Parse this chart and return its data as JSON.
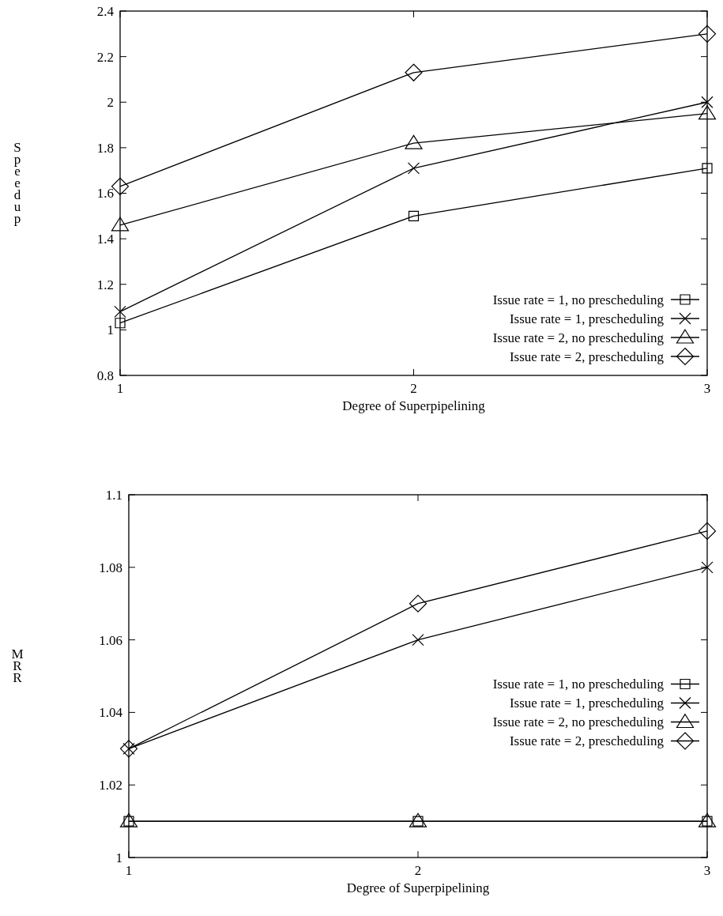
{
  "chart_data": [
    {
      "type": "line",
      "xlabel": "Degree of Superpipelining",
      "ylabel": "Speedup",
      "x": [
        1,
        2,
        3
      ],
      "xlim": [
        1,
        3
      ],
      "xticks": [
        1,
        2,
        3
      ],
      "ylim": [
        0.8,
        2.4
      ],
      "yticks": [
        0.8,
        1,
        1.2,
        1.4,
        1.6,
        1.8,
        2,
        2.2,
        2.4
      ],
      "grid": false,
      "legend": "bottom right",
      "series": [
        {
          "name": "Issue rate = 1, no prescheduling",
          "color": "#000000",
          "marker": "square",
          "values": [
            1.03,
            1.5,
            1.71
          ]
        },
        {
          "name": "Issue rate = 1, prescheduling",
          "color": "#000000",
          "marker": "cross",
          "values": [
            1.08,
            1.71,
            2.0
          ]
        },
        {
          "name": "Issue rate = 2, no prescheduling",
          "color": "#000000",
          "marker": "triangle",
          "values": [
            1.46,
            1.82,
            1.95
          ]
        },
        {
          "name": "Issue rate = 2, prescheduling",
          "color": "#000000",
          "marker": "diamond",
          "values": [
            1.63,
            2.13,
            2.3
          ]
        }
      ]
    },
    {
      "type": "line",
      "xlabel": "Degree of Superpipelining",
      "ylabel": "MRR",
      "x": [
        1,
        2,
        3
      ],
      "xlim": [
        1,
        3
      ],
      "xticks": [
        1,
        2,
        3
      ],
      "ylim": [
        1,
        1.1
      ],
      "yticks": [
        1,
        1.02,
        1.04,
        1.06,
        1.08,
        1.1
      ],
      "grid": false,
      "legend": "right",
      "series": [
        {
          "name": "Issue rate = 1, no prescheduling",
          "color": "#000000",
          "marker": "square",
          "values": [
            1.01,
            1.01,
            1.01
          ]
        },
        {
          "name": "Issue rate = 1, prescheduling",
          "color": "#000000",
          "marker": "cross",
          "values": [
            1.03,
            1.06,
            1.08
          ]
        },
        {
          "name": "Issue rate = 2, no prescheduling",
          "color": "#000000",
          "marker": "triangle",
          "values": [
            1.01,
            1.01,
            1.01
          ]
        },
        {
          "name": "Issue rate = 2, prescheduling",
          "color": "#000000",
          "marker": "diamond",
          "values": [
            1.03,
            1.07,
            1.09
          ]
        }
      ]
    }
  ]
}
